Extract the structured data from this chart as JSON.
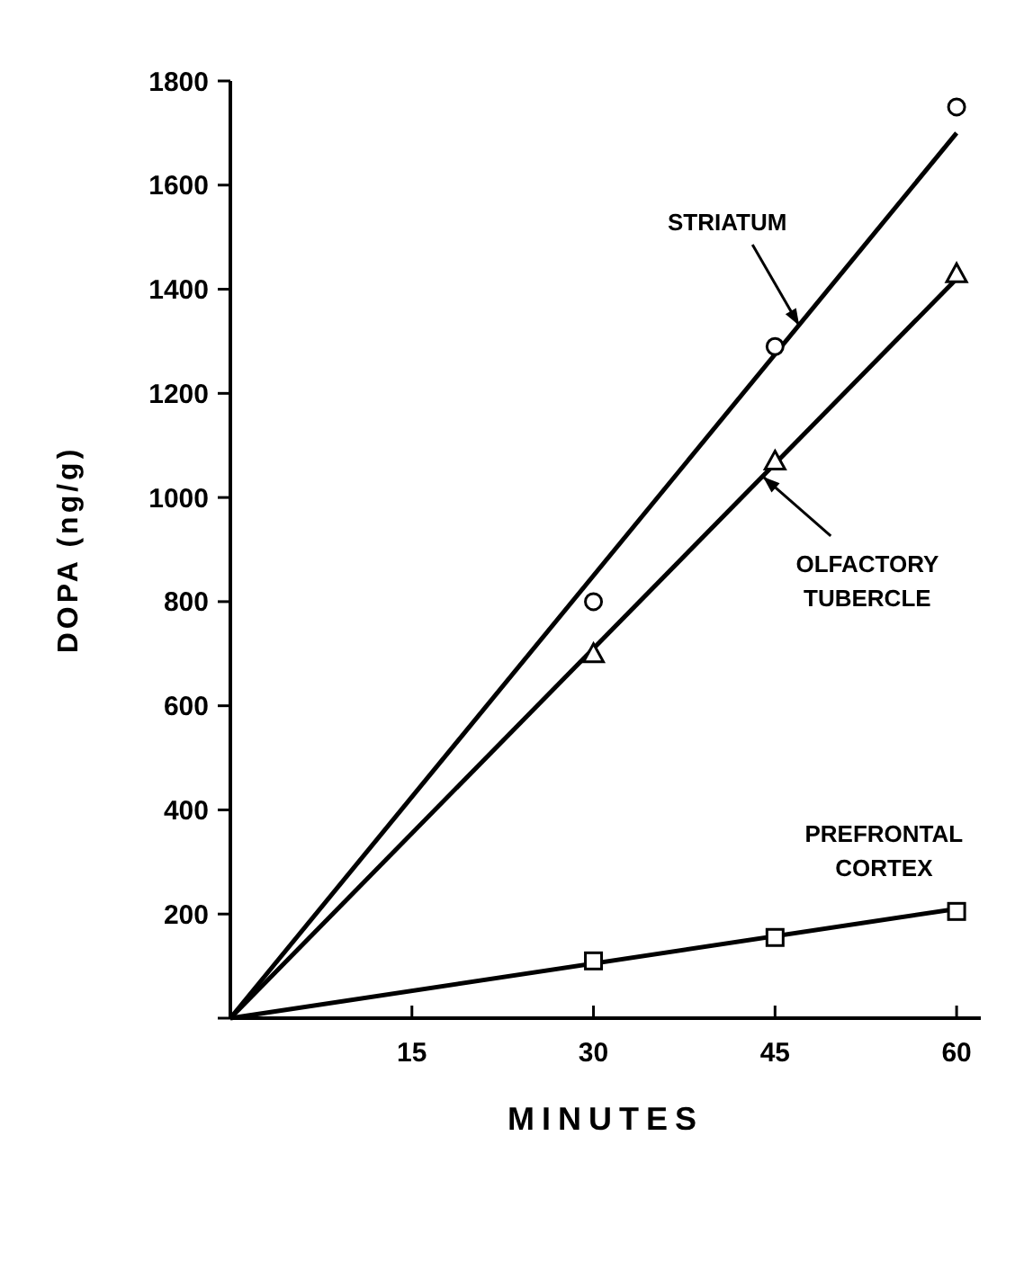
{
  "chart_data": {
    "type": "scatter",
    "xlabel": "MINUTES",
    "ylabel": "DOPA (ng/g)",
    "xlim": [
      0,
      62
    ],
    "ylim": [
      0,
      1800
    ],
    "xticks": [
      15,
      30,
      45,
      60
    ],
    "yticks": [
      {
        "value": 0,
        "label": null
      },
      200,
      400,
      600,
      800,
      1000,
      1200,
      1400,
      1600,
      1800
    ],
    "grid": false,
    "series": [
      {
        "color": "#000000",
        "marker": "circle",
        "x": [
          30,
          45,
          60
        ],
        "values": [
          800,
          1290,
          1750
        ]
      },
      {
        "color": "#000000",
        "marker": "triangle",
        "x": [
          30,
          45,
          60
        ],
        "values": [
          700,
          1070,
          1430
        ]
      },
      {
        "color": "#000000",
        "marker": "square",
        "x": [
          30,
          45,
          60
        ],
        "values": [
          110,
          155,
          205
        ]
      },
      {
        "type": "line",
        "color": "#000000",
        "marker": "none",
        "x": [
          0,
          60
        ],
        "values": [
          0,
          1700
        ]
      },
      {
        "type": "line",
        "color": "#000000",
        "marker": "none",
        "x": [
          0,
          60
        ],
        "values": [
          0,
          1420
        ]
      },
      {
        "type": "line",
        "color": "#000000",
        "marker": "none",
        "x": [
          0,
          60
        ],
        "values": [
          0,
          210
        ]
      }
    ],
    "annotations": [
      {
        "text": "STRIATUM",
        "x": 47,
        "y": 1330
      },
      {
        "text": "OLFACTORY TUBERCLE",
        "x": 44,
        "y": 1040
      },
      {
        "text": "PREFRONTAL CORTEX",
        "x": 54,
        "y": 190
      }
    ]
  }
}
